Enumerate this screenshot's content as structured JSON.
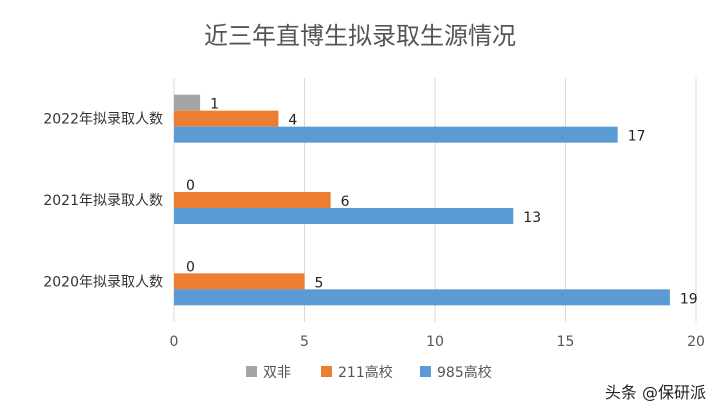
{
  "chart_data": {
    "type": "bar",
    "orientation": "horizontal",
    "title": "近三年直博生拟录取生源情况",
    "categories": [
      "2022年拟录取人数",
      "2021年拟录取人数",
      "2020年拟录取人数"
    ],
    "series": [
      {
        "name": "双非",
        "color": "#A5A5A5",
        "values": [
          1,
          0,
          0
        ]
      },
      {
        "name": "211高校",
        "color": "#ED7D31",
        "values": [
          4,
          6,
          5
        ]
      },
      {
        "name": "985高校",
        "color": "#5B9BD5",
        "values": [
          17,
          13,
          19
        ]
      }
    ],
    "xlim": [
      0,
      20
    ],
    "xticks": [
      0,
      5,
      10,
      15,
      20
    ],
    "grid": true,
    "legend_position": "bottom"
  },
  "watermark": "头条 @保研派"
}
